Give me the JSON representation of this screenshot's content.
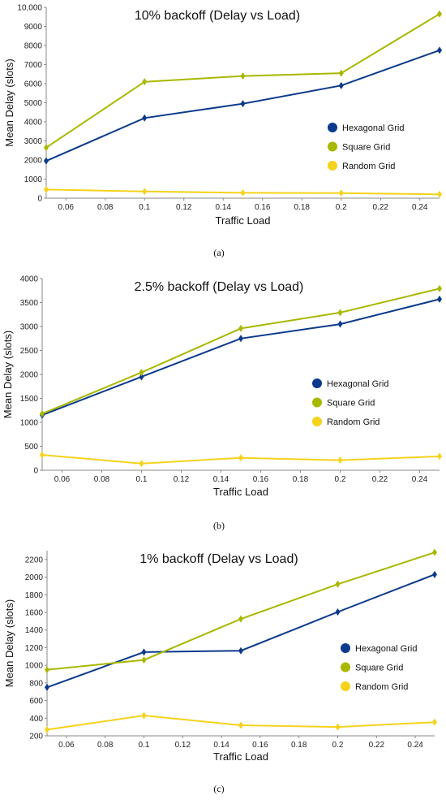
{
  "colors": {
    "hexagonal": "#0b3a8c",
    "square": "#a8b800",
    "random": "#f5d21c",
    "axis": "#8a8a8a"
  },
  "chart_data": [
    {
      "type": "line",
      "title": "10% backoff (Delay vs Load)",
      "caption": "(a)",
      "xlabel": "Traffic Load",
      "ylabel": "Mean Delay (slots)",
      "xlim": [
        0.05,
        0.25
      ],
      "ylim": [
        0,
        10000
      ],
      "xticks": [
        0.06,
        0.08,
        0.1,
        0.12,
        0.14,
        0.16,
        0.18,
        0.2,
        0.22,
        0.24
      ],
      "xtick_labels": [
        "0.06",
        "0.08",
        "0.1",
        "0.12",
        "0.14",
        "0.16",
        "0.18",
        "0.2",
        "0.22",
        "0.24"
      ],
      "yticks": [
        0,
        1000,
        2000,
        3000,
        4000,
        5000,
        6000,
        7000,
        8000,
        9000,
        10000
      ],
      "ytick_labels": [
        "0",
        "1000",
        "2000",
        "3000",
        "4000",
        "5000",
        "6000",
        "7000",
        "8000",
        "9000",
        "10,000"
      ],
      "grid": false,
      "legend_position": "center-right",
      "x": [
        0.05,
        0.1,
        0.15,
        0.2,
        0.25
      ],
      "series": [
        {
          "name": "Hexagonal Grid",
          "color_key": "hexagonal",
          "values": [
            1950,
            4200,
            4950,
            5900,
            7750
          ]
        },
        {
          "name": "Square Grid",
          "color_key": "square",
          "values": [
            2650,
            6100,
            6400,
            6550,
            9650
          ]
        },
        {
          "name": "Random Grid",
          "color_key": "random",
          "values": [
            450,
            350,
            280,
            270,
            200
          ]
        }
      ]
    },
    {
      "type": "line",
      "title": "2.5% backoff (Delay vs Load)",
      "caption": "(b)",
      "xlabel": "Traffic Load",
      "ylabel": "Mean Delay (slots)",
      "xlim": [
        0.05,
        0.25
      ],
      "ylim": [
        0,
        4000
      ],
      "xticks": [
        0.06,
        0.08,
        0.1,
        0.12,
        0.14,
        0.16,
        0.18,
        0.2,
        0.22,
        0.24
      ],
      "xtick_labels": [
        "0.06",
        "0.08",
        "0.1",
        "0.12",
        "0.14",
        "0.16",
        "0.18",
        "0.2",
        "0.22",
        "0.24"
      ],
      "yticks": [
        0,
        500,
        1000,
        1500,
        2000,
        2500,
        3000,
        3500,
        4000
      ],
      "ytick_labels": [
        "0",
        "500",
        "1000",
        "1500",
        "2000",
        "2500",
        "3000",
        "3500",
        "4000"
      ],
      "grid": false,
      "legend_position": "center-right",
      "x": [
        0.05,
        0.1,
        0.15,
        0.2,
        0.25
      ],
      "series": [
        {
          "name": "Hexagonal Grid",
          "color_key": "hexagonal",
          "values": [
            1150,
            1950,
            2750,
            3050,
            3570
          ]
        },
        {
          "name": "Square Grid",
          "color_key": "square",
          "values": [
            1180,
            2040,
            2960,
            3290,
            3790
          ]
        },
        {
          "name": "Random Grid",
          "color_key": "random",
          "values": [
            320,
            140,
            260,
            210,
            290
          ]
        }
      ]
    },
    {
      "type": "line",
      "title": "1% backoff (Delay vs Load)",
      "caption": "(c)",
      "xlabel": "Traffic Load",
      "ylabel": "Mean Delay (slots)",
      "xlim": [
        0.05,
        0.25
      ],
      "ylim": [
        200,
        2300
      ],
      "xticks": [
        0.06,
        0.08,
        0.1,
        0.12,
        0.14,
        0.16,
        0.18,
        0.2,
        0.22,
        0.24
      ],
      "xtick_labels": [
        "0.06",
        "0.08",
        "0.1",
        "0.12",
        "0.14",
        "0.16",
        "0.18",
        "0.2",
        "0.22",
        "0.24"
      ],
      "yticks": [
        200,
        400,
        600,
        800,
        1000,
        1200,
        1400,
        1600,
        1800,
        2000,
        2200
      ],
      "ytick_labels": [
        "200",
        "400",
        "600",
        "800",
        "1000",
        "1200",
        "1400",
        "1600",
        "1800",
        "2000",
        "2200"
      ],
      "grid": false,
      "legend_position": "center-right",
      "x": [
        0.05,
        0.1,
        0.15,
        0.2,
        0.25
      ],
      "series": [
        {
          "name": "Hexagonal Grid",
          "color_key": "hexagonal",
          "values": [
            750,
            1150,
            1165,
            1605,
            2030
          ]
        },
        {
          "name": "Square Grid",
          "color_key": "square",
          "values": [
            950,
            1060,
            1525,
            1920,
            2280
          ]
        },
        {
          "name": "Random Grid",
          "color_key": "random",
          "values": [
            270,
            430,
            320,
            300,
            355
          ]
        }
      ]
    }
  ]
}
